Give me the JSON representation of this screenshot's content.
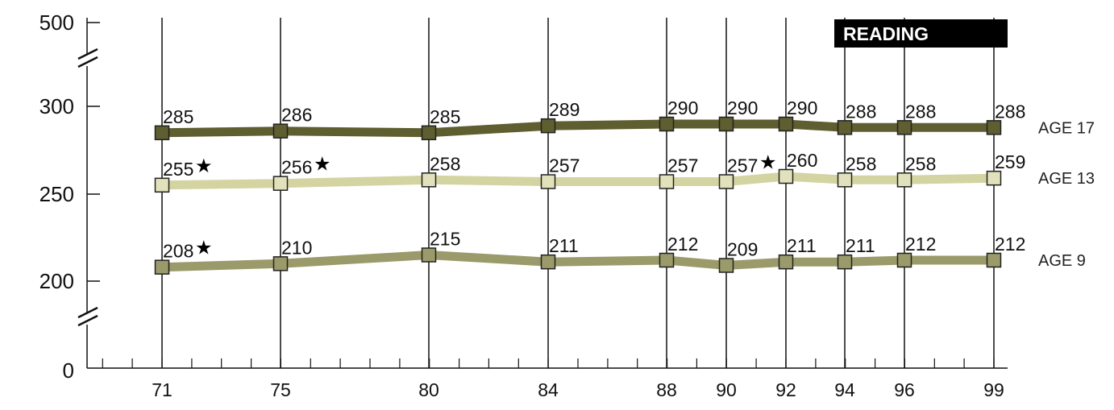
{
  "chart_data": {
    "type": "line",
    "title": "READING",
    "x": [
      "71",
      "75",
      "80",
      "84",
      "88",
      "90",
      "92",
      "94",
      "96",
      "99"
    ],
    "y_ticks": [
      "0",
      "200",
      "250",
      "300",
      "500"
    ],
    "ylim": [
      200,
      300
    ],
    "axis_breaks": true,
    "grid": "vertical",
    "legend": "right (labels at line ends)",
    "series": [
      {
        "name": "AGE 17",
        "values": [
          285,
          286,
          285,
          289,
          290,
          290,
          290,
          288,
          288,
          288
        ],
        "marked": [
          false,
          false,
          false,
          false,
          false,
          false,
          false,
          false,
          false,
          false
        ],
        "color": "#5e5e30",
        "marker_color": "#5e5e30"
      },
      {
        "name": "AGE 13",
        "values": [
          255,
          256,
          258,
          257,
          257,
          257,
          260,
          258,
          258,
          259
        ],
        "marked": [
          true,
          true,
          false,
          false,
          false,
          true,
          false,
          false,
          false,
          false
        ],
        "color": "#d4d4a2",
        "marker_color": "#e1e1bb"
      },
      {
        "name": "AGE 9",
        "values": [
          208,
          210,
          215,
          211,
          212,
          209,
          211,
          211,
          212,
          212
        ],
        "marked": [
          true,
          false,
          false,
          false,
          false,
          false,
          false,
          false,
          false,
          false
        ],
        "color": "#9a9a6a",
        "marker_color": "#9a9a6a"
      }
    ],
    "star_symbol": "★"
  }
}
